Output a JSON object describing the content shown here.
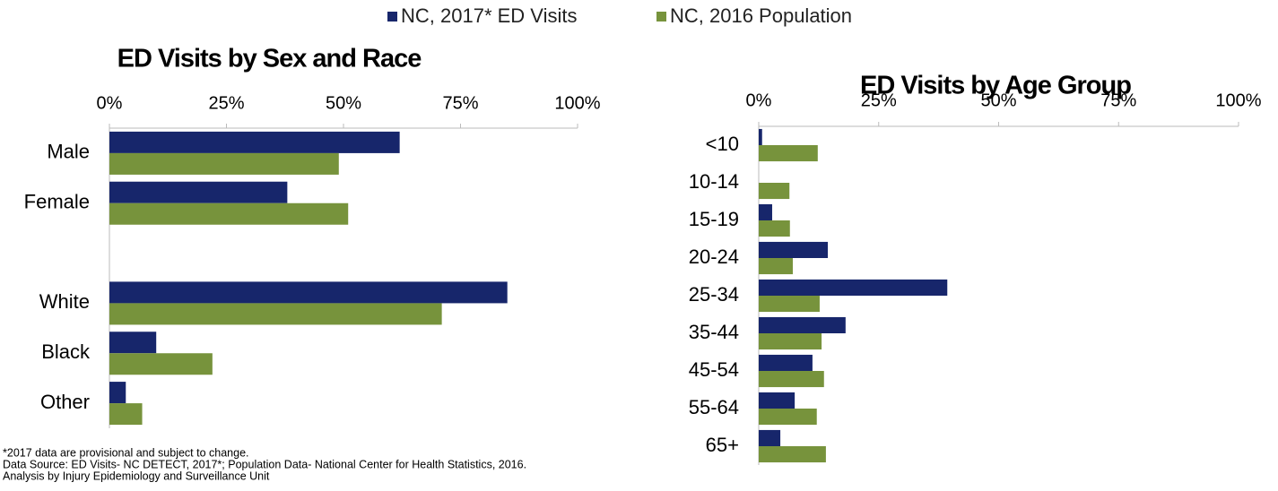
{
  "chart_data": [
    {
      "type": "bar",
      "orientation": "horizontal",
      "title": "ED Visits by Sex and Race",
      "categories": [
        "Male",
        "Female",
        null,
        "White",
        "Black",
        "Other"
      ],
      "series": [
        {
          "name": "NC, 2017* ED Visits",
          "color": "#17266b",
          "values": [
            62,
            38,
            null,
            85,
            10,
            3.5
          ]
        },
        {
          "name": "NC, 2016 Population",
          "color": "#77933c",
          "values": [
            49,
            51,
            null,
            71,
            22,
            7
          ]
        }
      ],
      "xlim": [
        0,
        100
      ],
      "xticks": [
        {
          "value": 0,
          "label": "0%"
        },
        {
          "value": 25,
          "label": "25%"
        },
        {
          "value": 50,
          "label": "50%"
        },
        {
          "value": 75,
          "label": "75%"
        },
        {
          "value": 100,
          "label": "100%"
        }
      ],
      "legend": "top"
    },
    {
      "type": "bar",
      "orientation": "horizontal",
      "title": "ED Visits by Age Group",
      "categories": [
        "<10",
        "10-14",
        "15-19",
        "20-24",
        "25-34",
        "35-44",
        "45-54",
        "55-64",
        "65+"
      ],
      "series": [
        {
          "color": "#17266b",
          "values": [
            0.7,
            0,
            2.8,
            14.4,
            39.3,
            18.1,
            11.2,
            7.5,
            4.5
          ]
        },
        {
          "color": "#77933c",
          "values": [
            12.3,
            6.4,
            6.5,
            7.1,
            12.7,
            13.1,
            13.6,
            12.1,
            14.0
          ]
        }
      ],
      "xlim": [
        0,
        100
      ],
      "xticks": [
        {
          "value": 0,
          "label": "0%"
        },
        {
          "value": 25,
          "label": "25%"
        },
        {
          "value": 50,
          "label": "50%"
        },
        {
          "value": 75,
          "label": "75%"
        },
        {
          "value": 100,
          "label": "100%"
        }
      ]
    }
  ],
  "notes": [
    "*2017 data are provisional and subject to change.",
    "Data Source: ED Visits- NC DETECT, 2017*; Population Data- National Center for Health Statistics, 2016.",
    "Analysis by Injury Epidemiology and Surveillance Unit"
  ]
}
